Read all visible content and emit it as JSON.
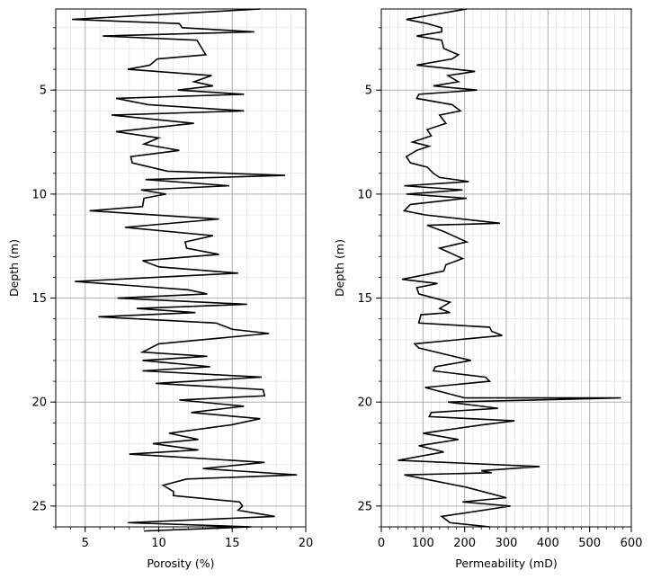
{
  "chart_data": [
    {
      "type": "line",
      "xlabel": "Porosity (%)",
      "ylabel": "Depth (m)",
      "xlim": [
        3,
        20
      ],
      "ylim": [
        26,
        1.1
      ],
      "y_inverted": true,
      "grid": true,
      "xticks": [
        5,
        10,
        15,
        20
      ],
      "yticks": [
        5,
        10,
        15,
        20,
        25
      ],
      "line_color": "#000000",
      "series": [
        {
          "x": [
            16.9,
            4.1,
            11.4,
            11.6,
            16.5,
            6.2,
            12.6,
            13.2,
            9.9,
            9.4,
            7.9,
            13.6,
            12.4,
            13.7,
            11.3,
            15.8,
            7.1,
            9.3,
            15.8,
            6.8,
            12.4,
            7.1,
            10.0,
            9.0,
            11.4,
            8.1,
            8.2,
            10.6,
            18.6,
            9.1,
            14.8,
            8.8,
            10.5,
            9.0,
            8.9,
            5.3,
            14.1,
            7.7,
            13.7,
            11.8,
            11.9,
            14.1,
            8.9,
            10.0,
            15.4,
            4.3,
            12.0,
            13.3,
            7.2,
            16.0,
            8.5,
            12.5,
            5.9,
            13.9,
            15.0,
            17.5,
            10.0,
            8.9,
            13.3,
            8.9,
            13.5,
            8.9,
            17.0,
            9.8,
            17.1,
            17.2,
            11.4,
            15.8,
            12.2,
            16.9,
            14.9,
            10.7,
            12.7,
            9.6,
            12.7,
            8.0,
            17.2,
            13.0,
            19.4,
            11.9,
            10.3,
            11.0,
            11.0,
            15.5,
            15.7,
            15.4,
            17.9,
            7.9,
            16.3,
            9.0
          ],
          "y": [
            1.1,
            1.6,
            1.8,
            2.0,
            2.2,
            2.4,
            2.6,
            3.3,
            3.5,
            3.8,
            4.0,
            4.3,
            4.6,
            4.8,
            5.0,
            5.2,
            5.4,
            5.7,
            6.0,
            6.2,
            6.6,
            7.0,
            7.3,
            7.6,
            7.9,
            8.2,
            8.5,
            8.9,
            9.1,
            9.3,
            9.6,
            9.8,
            10.0,
            10.2,
            10.6,
            10.8,
            11.2,
            11.6,
            12.0,
            12.3,
            12.6,
            12.9,
            13.2,
            13.5,
            13.8,
            14.2,
            14.6,
            14.8,
            15.0,
            15.3,
            15.5,
            15.7,
            15.9,
            16.2,
            16.5,
            16.7,
            17.2,
            17.6,
            17.8,
            18.0,
            18.3,
            18.5,
            18.8,
            19.1,
            19.4,
            19.7,
            19.9,
            20.2,
            20.5,
            20.8,
            21.1,
            21.5,
            21.8,
            22.0,
            22.3,
            22.5,
            22.9,
            23.2,
            23.5,
            23.7,
            24.0,
            24.3,
            24.5,
            24.8,
            25.0,
            25.2,
            25.5,
            25.8,
            26.0,
            26.2
          ]
        }
      ]
    },
    {
      "type": "line",
      "xlabel": "Permeability (mD)",
      "ylabel": "Depth (m)",
      "xlim": [
        0,
        600
      ],
      "ylim": [
        26,
        1.1
      ],
      "y_inverted": true,
      "grid": true,
      "xticks": [
        0,
        100,
        200,
        300,
        400,
        500,
        600
      ],
      "yticks": [
        5,
        10,
        15,
        20,
        25
      ],
      "line_color": "#000000",
      "series": [
        {
          "x": [
            205,
            60,
            110,
            145,
            145,
            85,
            145,
            150,
            185,
            170,
            85,
            225,
            160,
            185,
            125,
            230,
            90,
            85,
            170,
            190,
            140,
            155,
            110,
            120,
            75,
            115,
            85,
            60,
            70,
            110,
            125,
            140,
            210,
            55,
            195,
            60,
            205,
            70,
            55,
            105,
            285,
            110,
            150,
            205,
            140,
            195,
            155,
            150,
            50,
            135,
            85,
            90,
            165,
            140,
            165,
            95,
            90,
            260,
            265,
            290,
            80,
            90,
            215,
            130,
            125,
            250,
            260,
            105,
            200,
            575,
            160,
            280,
            120,
            115,
            320,
            240,
            100,
            185,
            90,
            150,
            40,
            380,
            240,
            265,
            55,
            205,
            300,
            195,
            310,
            145,
            165,
            260
          ],
          "y": [
            1.1,
            1.6,
            1.8,
            2.0,
            2.2,
            2.4,
            2.6,
            3.0,
            3.3,
            3.5,
            3.8,
            4.1,
            4.3,
            4.6,
            4.8,
            5.0,
            5.2,
            5.4,
            5.7,
            6.0,
            6.2,
            6.6,
            6.9,
            7.2,
            7.5,
            7.7,
            7.9,
            8.2,
            8.5,
            8.7,
            9.0,
            9.2,
            9.4,
            9.6,
            9.8,
            10.0,
            10.2,
            10.5,
            10.8,
            11.0,
            11.4,
            11.5,
            11.8,
            12.3,
            12.6,
            13.1,
            13.4,
            13.7,
            14.1,
            14.3,
            14.5,
            14.8,
            15.2,
            15.5,
            15.7,
            15.8,
            16.2,
            16.4,
            16.6,
            16.8,
            17.2,
            17.4,
            18.0,
            18.3,
            18.5,
            18.8,
            19.0,
            19.3,
            19.8,
            19.8,
            20.0,
            20.3,
            20.5,
            20.7,
            20.9,
            21.1,
            21.5,
            21.8,
            22.1,
            22.4,
            22.8,
            23.1,
            23.3,
            23.4,
            23.5,
            24.1,
            24.6,
            24.8,
            25.0,
            25.5,
            25.8,
            26.0
          ]
        }
      ]
    }
  ]
}
